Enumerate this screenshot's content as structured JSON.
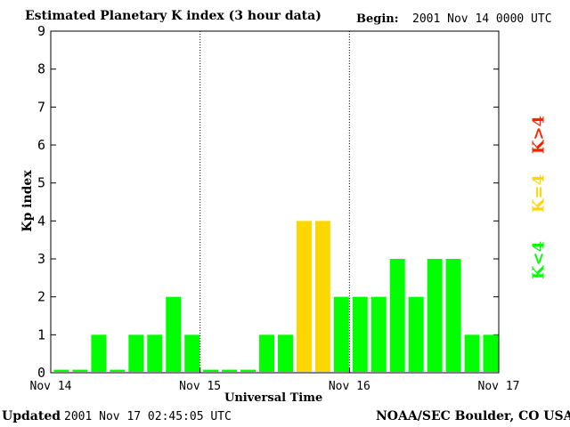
{
  "header": {
    "title": "Estimated Planetary K index (3 hour data)",
    "begin_label": "Begin:",
    "begin_value": "2001 Nov 14 0000 UTC"
  },
  "footer": {
    "updated_label": "Updated",
    "updated_value": "2001 Nov 17 02:45:05 UTC",
    "source": "NOAA/SEC Boulder, CO USA"
  },
  "legend": {
    "gt4": "K>4",
    "eq4": "K=4",
    "lt4": "K<4"
  },
  "colors": {
    "lt4": "#00ff00",
    "eq4": "#ffd700",
    "gt4": "#ff2000"
  },
  "chart_data": {
    "type": "bar",
    "title": "Estimated Planetary K index (3 hour data)",
    "xlabel": "Universal Time",
    "ylabel": "Kp index",
    "ylim": [
      0,
      9
    ],
    "yticks": [
      0,
      1,
      2,
      3,
      4,
      5,
      6,
      7,
      8,
      9
    ],
    "xticks": [
      "Nov 14",
      "Nov 15",
      "Nov 16",
      "Nov 17"
    ],
    "bars_per_day": 8,
    "values": [
      0,
      0,
      1,
      0,
      1,
      1,
      2,
      1,
      0,
      0,
      0,
      1,
      1,
      4,
      4,
      2,
      2,
      2,
      3,
      2,
      3,
      3,
      1,
      1
    ],
    "grid": "dotted vertical lines at day boundaries"
  }
}
